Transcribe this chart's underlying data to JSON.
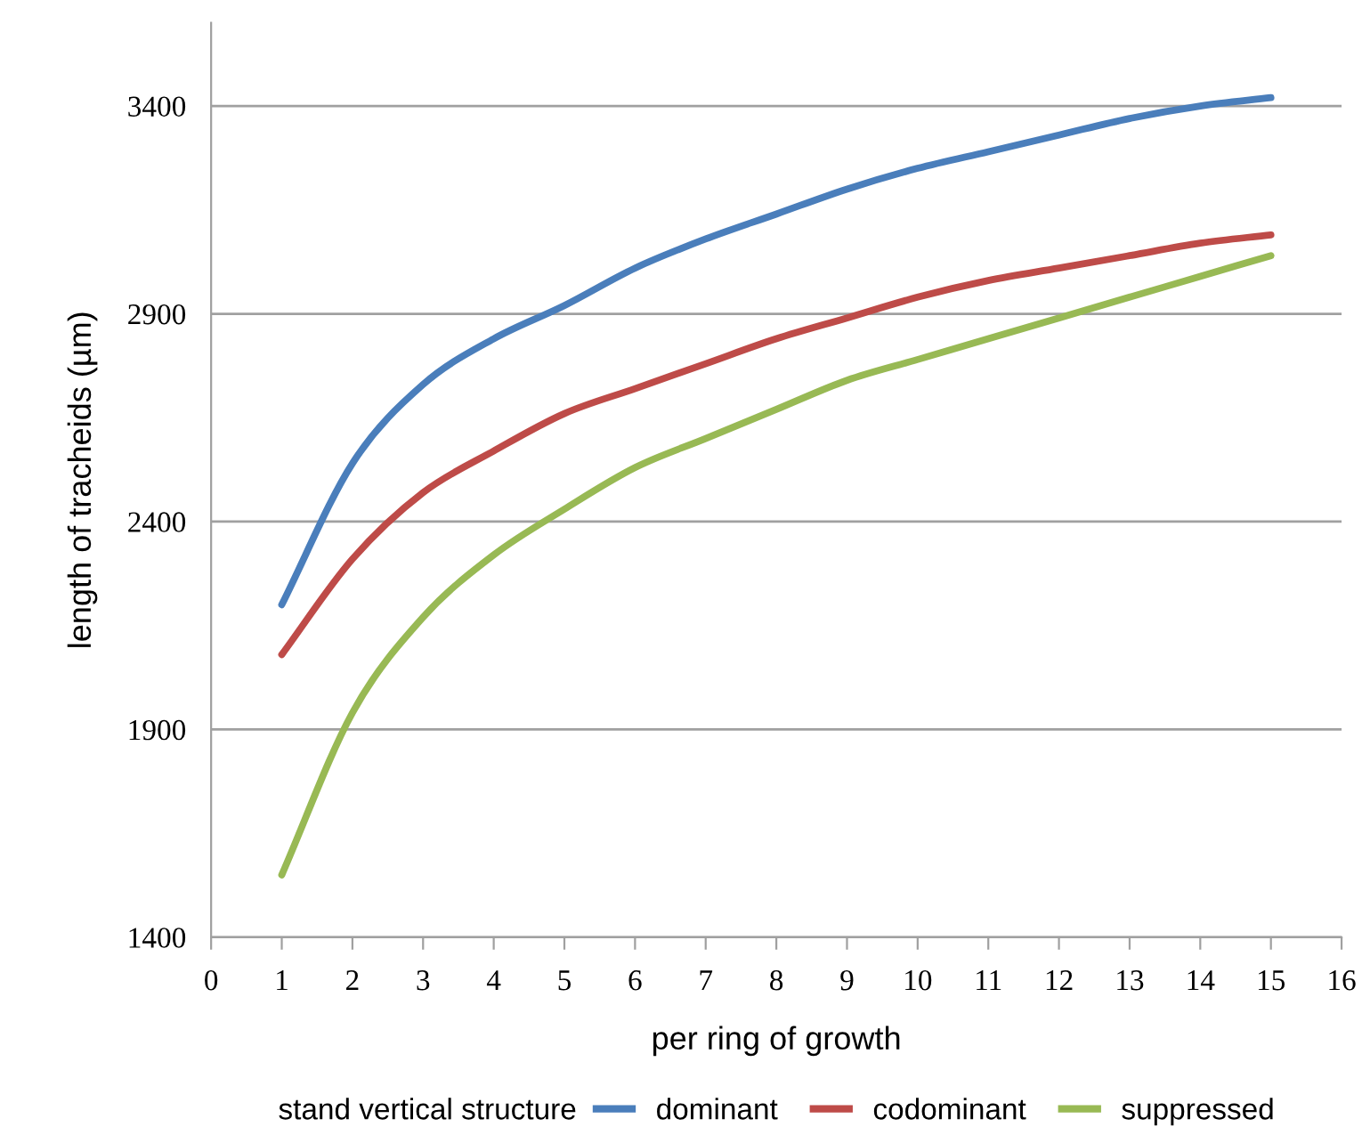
{
  "chart_data": {
    "type": "line",
    "xlabel": "per ring of growth",
    "ylabel": "length of tracheids (µm)",
    "legend_title": "stand vertical structure",
    "legend": "bottom",
    "grid": "y",
    "marker": "none",
    "line_style": "solid",
    "xlim": [
      0,
      16
    ],
    "xticks": [
      0,
      1,
      2,
      3,
      4,
      5,
      6,
      7,
      8,
      9,
      10,
      11,
      12,
      13,
      14,
      15,
      16
    ],
    "ylim": [
      1400,
      3600
    ],
    "yticks": [
      1400,
      1900,
      2400,
      2900,
      3400
    ],
    "x": [
      1,
      2,
      3,
      4,
      5,
      6,
      7,
      8,
      9,
      10,
      11,
      12,
      13,
      14,
      15
    ],
    "series": [
      {
        "name": "dominant",
        "color": "#4a7ebb",
        "values": [
          2200,
          2540,
          2730,
          2840,
          2920,
          3010,
          3080,
          3140,
          3200,
          3250,
          3290,
          3330,
          3370,
          3400,
          3420
        ]
      },
      {
        "name": "codominant",
        "color": "#be4b48",
        "values": [
          2080,
          2310,
          2470,
          2570,
          2660,
          2720,
          2780,
          2840,
          2890,
          2940,
          2980,
          3010,
          3040,
          3070,
          3090
        ]
      },
      {
        "name": "suppressed",
        "color": "#98b954",
        "values": [
          1550,
          1940,
          2170,
          2320,
          2430,
          2530,
          2600,
          2670,
          2740,
          2790,
          2840,
          2890,
          2940,
          2990,
          3040
        ]
      }
    ]
  }
}
